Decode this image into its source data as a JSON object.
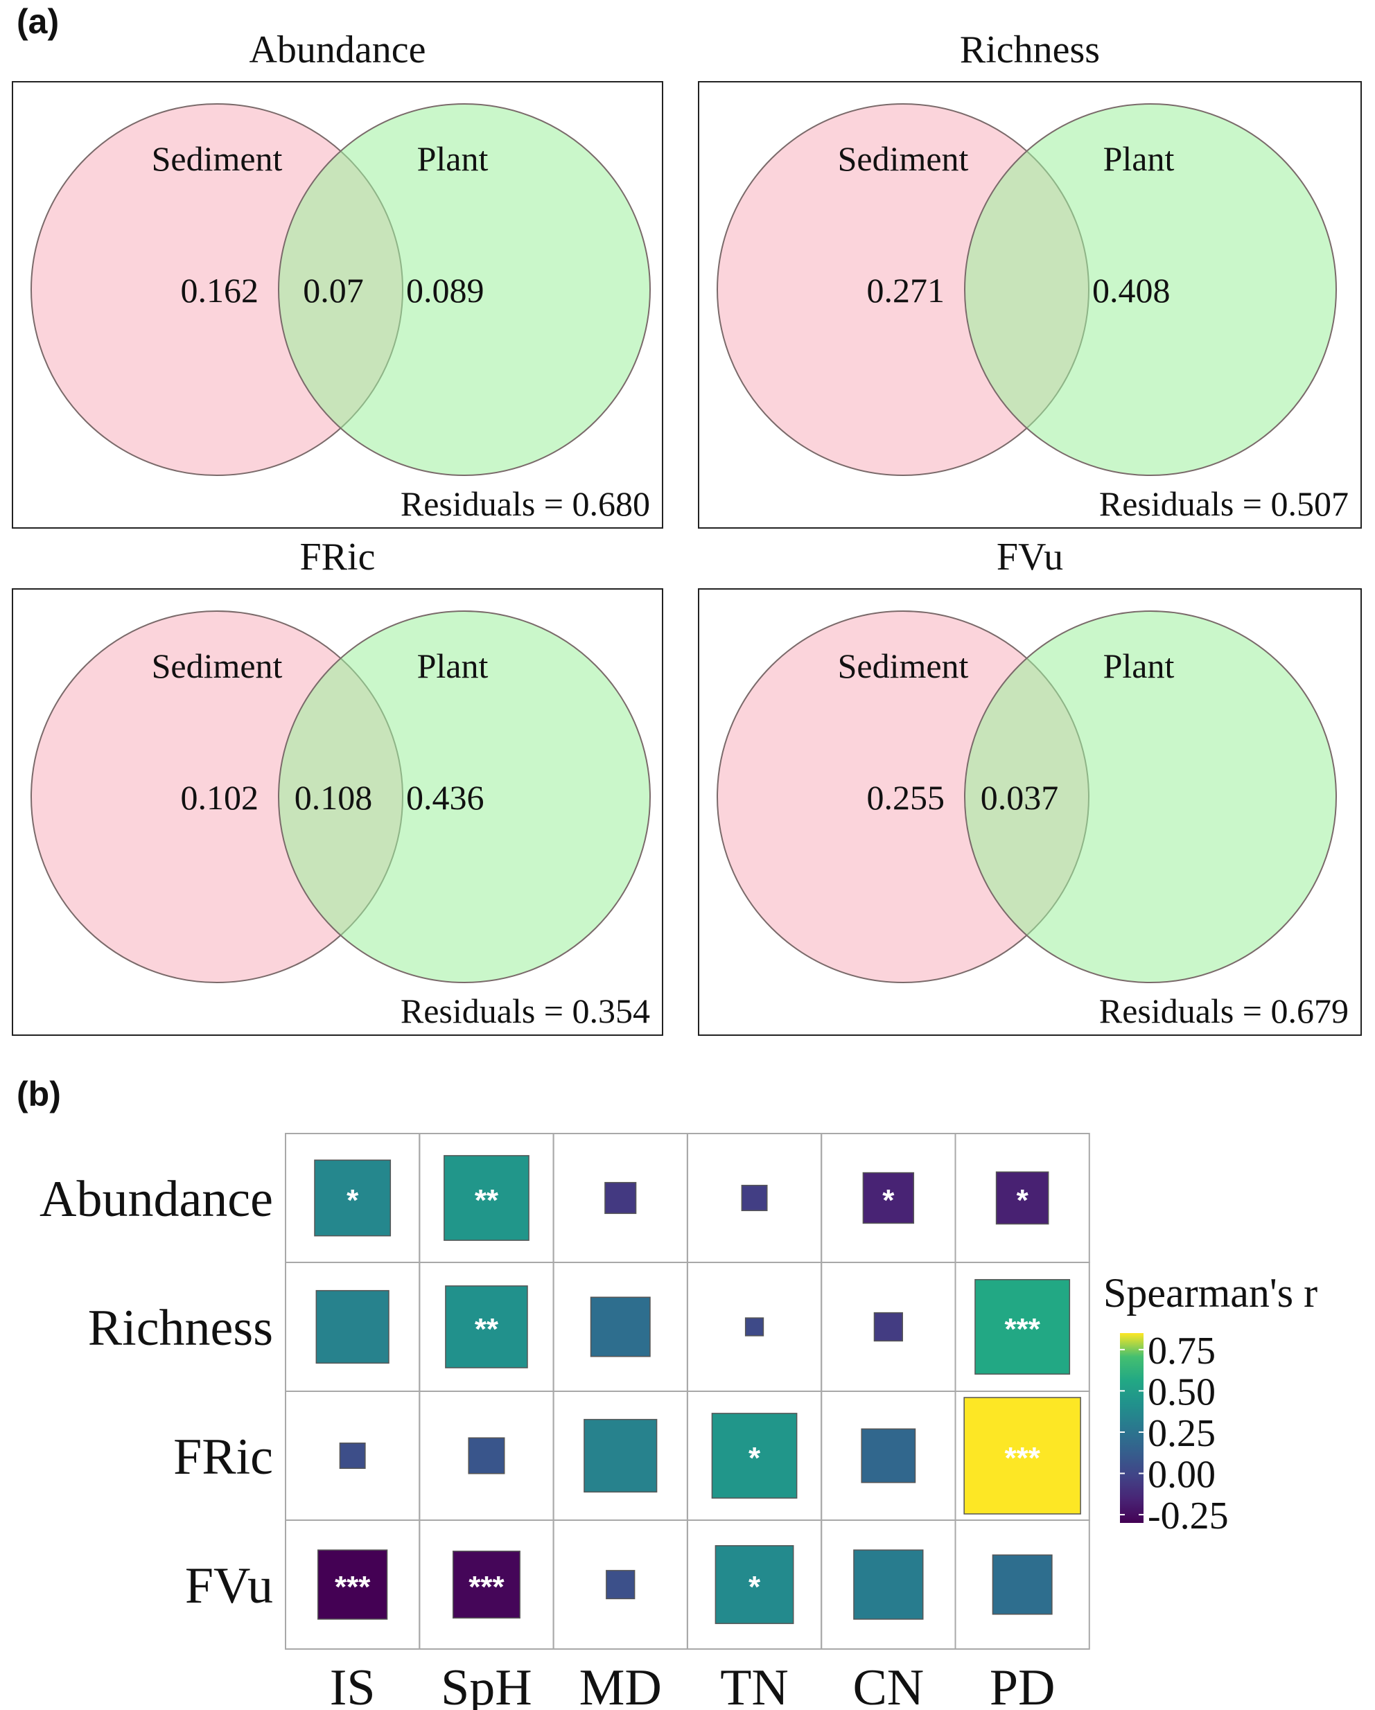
{
  "panel_a_label": "(a)",
  "panel_b_label": "(b)",
  "colors": {
    "sediment_circle": "#f9b7c3",
    "plant_circle": "#9ef09e",
    "circle_stroke": "#7a6a6a",
    "heatmap_colormap": "viridis"
  },
  "chart_data": [
    {
      "type": "venn",
      "title": "Abundance",
      "sets": [
        "Sediment",
        "Plant"
      ],
      "values": {
        "sediment_only": "0.162",
        "shared": "0.07",
        "plant_only": "0.089"
      },
      "residuals_label": "Residuals = 0.680"
    },
    {
      "type": "venn",
      "title": "Richness",
      "sets": [
        "Sediment",
        "Plant"
      ],
      "values": {
        "sediment_only": "0.271",
        "shared": "",
        "plant_only": "0.408"
      },
      "residuals_label": "Residuals = 0.507"
    },
    {
      "type": "venn",
      "title": "FRic",
      "sets": [
        "Sediment",
        "Plant"
      ],
      "values": {
        "sediment_only": "0.102",
        "shared": "0.108",
        "plant_only": "0.436"
      },
      "residuals_label": "Residuals = 0.354"
    },
    {
      "type": "venn",
      "title": "FVu",
      "sets": [
        "Sediment",
        "Plant"
      ],
      "values": {
        "sediment_only": "0.255",
        "shared": "0.037",
        "plant_only": ""
      },
      "residuals_label": "Residuals = 0.679"
    },
    {
      "type": "heatmap",
      "rows": [
        "Abundance",
        "Richness",
        "FRic",
        "FVu"
      ],
      "columns": [
        "IS",
        "SpH",
        "MD",
        "TN",
        "CN",
        "PD"
      ],
      "values": [
        [
          0.36,
          0.45,
          -0.06,
          -0.04,
          -0.16,
          -0.17
        ],
        [
          0.33,
          0.42,
          0.22,
          0.02,
          -0.05,
          0.56
        ],
        [
          0.04,
          0.08,
          0.33,
          0.45,
          0.18,
          0.85
        ],
        [
          -0.3,
          -0.28,
          0.05,
          0.38,
          0.3,
          0.22
        ]
      ],
      "significance": [
        [
          "*",
          "**",
          "",
          "",
          "*",
          "*"
        ],
        [
          "",
          "**",
          "",
          "",
          "",
          "***"
        ],
        [
          "",
          "",
          "",
          "*",
          "",
          "***"
        ],
        [
          "***",
          "***",
          "",
          "*",
          "",
          ""
        ]
      ],
      "legend": {
        "title": "Spearman's r",
        "ticks": [
          "0.75",
          "0.50",
          "0.25",
          "0.00",
          "-0.25"
        ],
        "range": [
          -0.3,
          0.85
        ]
      },
      "size_encoding": "absolute value of r"
    }
  ]
}
